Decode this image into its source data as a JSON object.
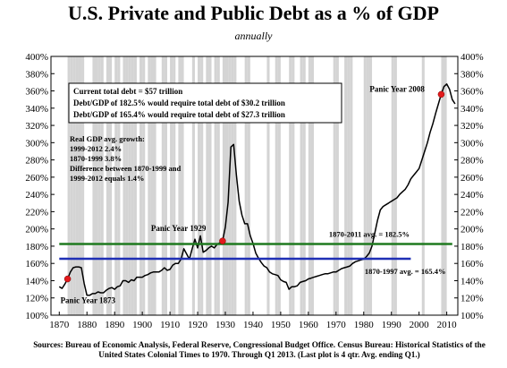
{
  "chart_data": {
    "type": "line",
    "title": "U.S. Private and Public Debt as a % of GDP",
    "subtitle": "annually",
    "xlim": [
      1867,
      2014
    ],
    "ylim": [
      100,
      400
    ],
    "x_ticks": [
      "1870",
      "1880",
      "1890",
      "1900",
      "1910",
      "1920",
      "1930",
      "1940",
      "1950",
      "1960",
      "1970",
      "1980",
      "1990",
      "2000",
      "2010"
    ],
    "y_ticks": [
      "100%",
      "120%",
      "140%",
      "160%",
      "180%",
      "200%",
      "220%",
      "240%",
      "260%",
      "280%",
      "300%",
      "320%",
      "340%",
      "360%",
      "380%",
      "400%"
    ],
    "grid": false,
    "series": [
      {
        "x": [
          1870,
          1871,
          1872,
          1873,
          1874,
          1875,
          1876,
          1877,
          1878,
          1879,
          1880,
          1881,
          1882,
          1883,
          1884,
          1885,
          1886,
          1887,
          1888,
          1889,
          1890,
          1891,
          1892,
          1893,
          1894,
          1895,
          1896,
          1897,
          1898,
          1899,
          1900,
          1901,
          1902,
          1903,
          1904,
          1905,
          1906,
          1907,
          1908,
          1909,
          1910,
          1911,
          1912,
          1913,
          1914,
          1915,
          1916,
          1917,
          1918,
          1919,
          1920,
          1921,
          1922,
          1923,
          1924,
          1925,
          1926,
          1927,
          1928,
          1929,
          1930,
          1931,
          1932,
          1933,
          1934,
          1935,
          1936,
          1937,
          1938,
          1939,
          1940,
          1941,
          1942,
          1943,
          1944,
          1945,
          1946,
          1947,
          1948,
          1949,
          1950,
          1951,
          1952,
          1953,
          1954,
          1955,
          1956,
          1957,
          1958,
          1959,
          1960,
          1961,
          1962,
          1963,
          1964,
          1965,
          1966,
          1967,
          1968,
          1969,
          1970,
          1971,
          1972,
          1973,
          1974,
          1975,
          1976,
          1977,
          1978,
          1979,
          1980,
          1981,
          1982,
          1983,
          1984,
          1985,
          1986,
          1987,
          1988,
          1989,
          1990,
          1991,
          1992,
          1993,
          1994,
          1995,
          1996,
          1997,
          1998,
          1999,
          2000,
          2001,
          2002,
          2003,
          2004,
          2005,
          2006,
          2007,
          2008,
          2009,
          2010,
          2011,
          2012,
          2013
        ],
        "y": [
          133,
          131,
          136,
          142,
          150,
          155,
          156,
          156,
          155,
          137,
          123,
          123,
          125,
          125,
          127,
          126,
          126,
          129,
          131,
          132,
          130,
          133,
          134,
          140,
          140,
          138,
          141,
          140,
          144,
          144,
          144,
          146,
          147,
          149,
          150,
          150,
          150,
          152,
          155,
          152,
          153,
          158,
          160,
          160,
          165,
          177,
          171,
          165,
          177,
          188,
          178,
          192,
          173,
          175,
          178,
          180,
          178,
          182,
          184,
          186,
          202,
          231,
          295,
          298,
          262,
          232,
          216,
          206,
          206,
          192,
          183,
          172,
          166,
          161,
          157,
          155,
          150,
          148,
          147,
          146,
          141,
          139,
          138,
          130,
          133,
          133,
          134,
          138,
          139,
          140,
          142,
          143,
          144,
          145,
          146,
          147,
          148,
          148,
          149,
          150,
          150,
          152,
          154,
          155,
          156,
          157,
          160,
          162,
          163,
          164,
          165,
          168,
          172,
          180,
          195,
          210,
          222,
          226,
          228,
          230,
          232,
          234,
          236,
          240,
          243,
          246,
          251,
          258,
          262,
          266,
          270,
          280,
          290,
          300,
          312,
          322,
          334,
          345,
          356,
          365,
          368,
          362,
          350,
          345
        ]
      },
      {
        "name": "1870-2011 avg. = 182.5%",
        "x": [
          1870,
          2012
        ],
        "y": [
          182.5,
          182.5
        ],
        "color": "#1f7a1f"
      },
      {
        "name": "1870-1997 avg. = 165.4%",
        "x": [
          1870,
          1997
        ],
        "y": [
          165.4,
          165.4
        ],
        "color": "#1f2fb5"
      }
    ],
    "recession_years": [
      1873,
      1874,
      1875,
      1876,
      1877,
      1878,
      1882,
      1883,
      1884,
      1885,
      1887,
      1888,
      1890,
      1891,
      1893,
      1894,
      1895,
      1896,
      1897,
      1899,
      1900,
      1902,
      1903,
      1904,
      1907,
      1908,
      1910,
      1911,
      1913,
      1914,
      1918,
      1920,
      1921,
      1923,
      1924,
      1926,
      1927,
      1929,
      1930,
      1931,
      1932,
      1933,
      1937,
      1938,
      1945,
      1948,
      1949,
      1953,
      1954,
      1957,
      1958,
      1960,
      1961,
      1969,
      1970,
      1973,
      1974,
      1975,
      1980,
      1981,
      1982,
      1990,
      1991,
      2001,
      2008,
      2009
    ],
    "markers": [
      {
        "label": "Panic Year 1873",
        "x": 1873,
        "y": 142
      },
      {
        "label": "Panic Year 1929",
        "x": 1929,
        "y": 186
      },
      {
        "label": "Panic Year 2008",
        "x": 2008,
        "y": 356
      }
    ],
    "annotations": {
      "box_lines": [
        "Current total debt = $57 trillion",
        "Debt/GDP of 182.5% would require total debt of $30.2 trillion",
        "Debt/GDP of 165.4% would require total debt of $27.3 trillion"
      ],
      "growth_lines": [
        "Real GDP avg. growth:",
        "1999-2012    2.4%",
        "1870-1999    3.8%",
        "Difference between 1870-1999 and",
        "1999-2012 equals 1.4%"
      ]
    },
    "colors": {
      "line": "#000000",
      "recession_band": "#d4d4d4",
      "marker": "#e31a1c"
    }
  },
  "source": "Sources: Bureau of Economic Analysis, Federal Reserve, Congressional Budget Office. Census Bureau: Historical Statistics of the United States Colonial Times to 1970.   Through Q1 2013.  (Last plot is 4 qtr. Avg. ending Q1.)"
}
